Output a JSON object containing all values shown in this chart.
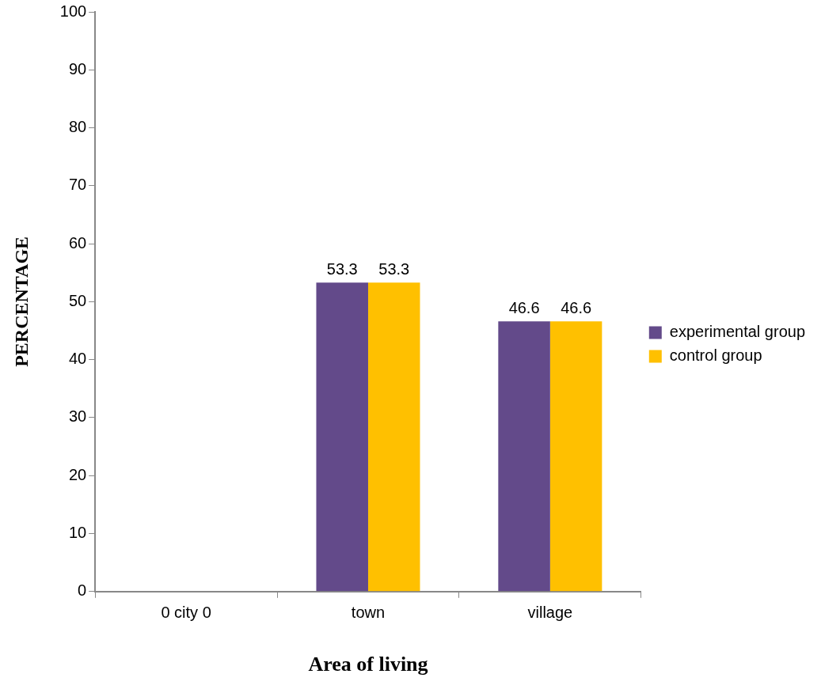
{
  "chart_data": {
    "type": "bar",
    "xlabel": "Area of living",
    "ylabel": "PERCENTAGE",
    "categories": [
      "0 city 0",
      "town",
      "village"
    ],
    "series": [
      {
        "name": "experimental group",
        "color": "#634a8a",
        "values": [
          0,
          53.3,
          46.6
        ],
        "value_labels": [
          null,
          "53.3",
          "46.6"
        ]
      },
      {
        "name": "control group",
        "color": "#ffc000",
        "values": [
          0,
          53.3,
          46.6
        ],
        "value_labels": [
          null,
          "53.3",
          "46.6"
        ]
      }
    ],
    "ylim": [
      0,
      100
    ],
    "yticks": [
      0,
      10,
      20,
      30,
      40,
      50,
      60,
      70,
      80,
      90,
      100
    ],
    "grid": false,
    "legend": "right"
  }
}
